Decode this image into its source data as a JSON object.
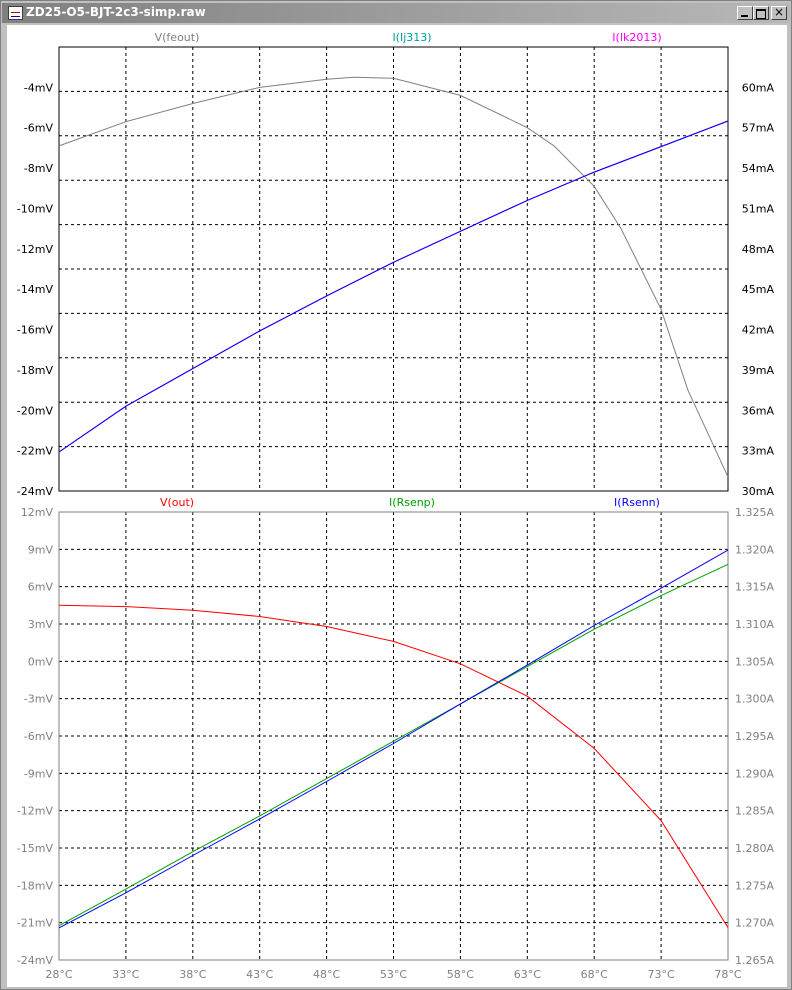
{
  "window": {
    "title": "ZD25-O5-BJT-2c3-simp.raw",
    "min_label": "_",
    "max_label": "□",
    "close_label": "×"
  },
  "colors": {
    "plot_bg": "#ffffff",
    "grid": "#000000",
    "axis_text": "#000000",
    "dim_text": "#808080"
  },
  "chart_data": [
    {
      "type": "line",
      "xlabel": "",
      "x_ticks": [
        "28°C",
        "33°C",
        "38°C",
        "43°C",
        "48°C",
        "53°C",
        "58°C",
        "63°C",
        "68°C",
        "73°C",
        "78°C"
      ],
      "xlim": [
        28,
        78
      ],
      "left_axis": {
        "ticks": [
          "-4mV",
          "-6mV",
          "-8mV",
          "-10mV",
          "-12mV",
          "-14mV",
          "-16mV",
          "-18mV",
          "-20mV",
          "-22mV",
          "-24mV"
        ],
        "ylim": [
          -24,
          -2
        ]
      },
      "right_axis": {
        "ticks": [
          "60mA",
          "57mA",
          "54mA",
          "51mA",
          "48mA",
          "45mA",
          "42mA",
          "39mA",
          "36mA",
          "33mA",
          "30mA"
        ],
        "ylim": [
          30,
          63
        ]
      },
      "grid": true,
      "series": [
        {
          "name": "V(feout)",
          "axis": "left",
          "color": "#808080",
          "x": [
            28,
            33,
            38,
            43,
            48,
            50,
            53,
            58,
            63,
            65,
            68,
            70,
            73,
            75,
            78
          ],
          "y": [
            -6.9,
            -5.7,
            -4.8,
            -4.0,
            -3.6,
            -3.5,
            -3.55,
            -4.4,
            -6.0,
            -6.9,
            -8.9,
            -11.0,
            -15.0,
            -19.0,
            -23.3
          ]
        },
        {
          "name": "I(Ij313)",
          "axis": "right",
          "color": "#00a0a0",
          "x": [
            28,
            33,
            38,
            43,
            48,
            53,
            58,
            63,
            68,
            73,
            78
          ],
          "y": [
            32.9,
            36.3,
            39.1,
            41.9,
            44.5,
            47.0,
            49.3,
            51.6,
            53.7,
            55.6,
            57.5
          ]
        },
        {
          "name": "I(Ik2013)",
          "axis": "right",
          "color": "#ff00ff",
          "x": [
            28,
            33,
            38,
            43,
            48,
            53,
            58,
            63,
            68,
            73,
            78
          ],
          "y": [
            32.9,
            36.3,
            39.1,
            41.9,
            44.5,
            47.0,
            49.3,
            51.6,
            53.7,
            55.6,
            57.5
          ]
        },
        {
          "name": "",
          "axis": "right",
          "color": "#0000ff",
          "x": [
            28,
            33,
            38,
            43,
            48,
            53,
            58,
            63,
            68,
            73,
            78
          ],
          "y": [
            32.9,
            36.3,
            39.1,
            41.9,
            44.5,
            47.0,
            49.3,
            51.6,
            53.7,
            55.6,
            57.5
          ]
        }
      ]
    },
    {
      "type": "line",
      "xlabel": "",
      "x_ticks": [
        "28°C",
        "33°C",
        "38°C",
        "43°C",
        "48°C",
        "53°C",
        "58°C",
        "63°C",
        "68°C",
        "73°C",
        "78°C"
      ],
      "xlim": [
        28,
        78
      ],
      "left_axis": {
        "ticks": [
          "12mV",
          "9mV",
          "6mV",
          "3mV",
          "0mV",
          "-3mV",
          "-6mV",
          "-9mV",
          "-12mV",
          "-15mV",
          "-18mV",
          "-21mV",
          "-24mV"
        ],
        "ylim": [
          -24,
          12
        ]
      },
      "right_axis": {
        "ticks": [
          "1.325A",
          "1.320A",
          "1.315A",
          "1.310A",
          "1.305A",
          "1.300A",
          "1.295A",
          "1.290A",
          "1.285A",
          "1.280A",
          "1.275A",
          "1.270A",
          "1.265A"
        ],
        "ylim": [
          1.265,
          1.325
        ]
      },
      "grid": true,
      "series": [
        {
          "name": "V(out)",
          "axis": "left",
          "color": "#ff0000",
          "x": [
            28,
            33,
            38,
            43,
            48,
            53,
            58,
            63,
            68,
            73,
            78
          ],
          "y": [
            4.5,
            4.4,
            4.1,
            3.6,
            2.8,
            1.6,
            -0.2,
            -2.8,
            -7.0,
            -12.8,
            -21.4
          ]
        },
        {
          "name": "I(Rsenp)",
          "axis": "right",
          "color": "#00a000",
          "x": [
            28,
            33,
            38,
            43,
            48,
            53,
            58,
            63,
            68,
            73,
            78
          ],
          "y": [
            1.2696,
            1.2745,
            1.2795,
            1.2843,
            1.2893,
            1.2943,
            1.2993,
            1.3043,
            1.3093,
            1.3138,
            1.318
          ]
        },
        {
          "name": "I(Rsenn)",
          "axis": "right",
          "color": "#0000ff",
          "x": [
            28,
            33,
            38,
            43,
            48,
            53,
            58,
            63,
            68,
            73,
            78
          ],
          "y": [
            1.2693,
            1.274,
            1.279,
            1.2839,
            1.2889,
            1.294,
            1.2993,
            1.3045,
            1.3098,
            1.3148,
            1.3199
          ]
        }
      ]
    }
  ]
}
